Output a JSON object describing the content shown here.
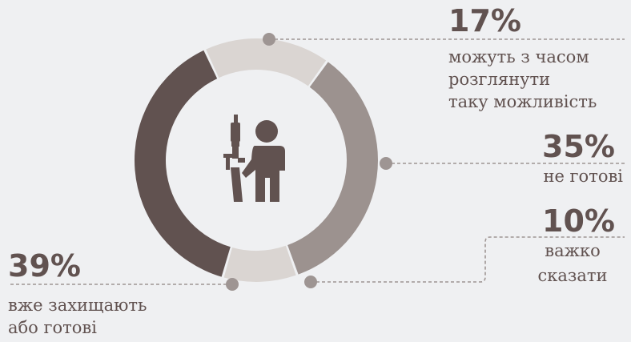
{
  "chart_data": {
    "type": "pie",
    "style": "donut",
    "start_angle_deg": -25,
    "slices": [
      {
        "label_lines": [
          "можуть з часом",
          "розглянути",
          "таку можливість"
        ],
        "value": 17,
        "value_label": "17%",
        "color": "#dad5d2"
      },
      {
        "label_lines": [
          "не готові"
        ],
        "value": 35,
        "value_label": "35%",
        "color": "#9c928f"
      },
      {
        "label_lines": [
          "важко",
          "сказати"
        ],
        "value": 10,
        "value_label": "10%",
        "color": "#dad5d2"
      },
      {
        "label_lines": [
          "вже захищають",
          "або готові"
        ],
        "value": 39,
        "value_label": "39%",
        "color": "#615250"
      }
    ],
    "center_icon": "soldier-with-rifle-icon",
    "leader_color": "#9e9593",
    "text_color": "#615250"
  }
}
